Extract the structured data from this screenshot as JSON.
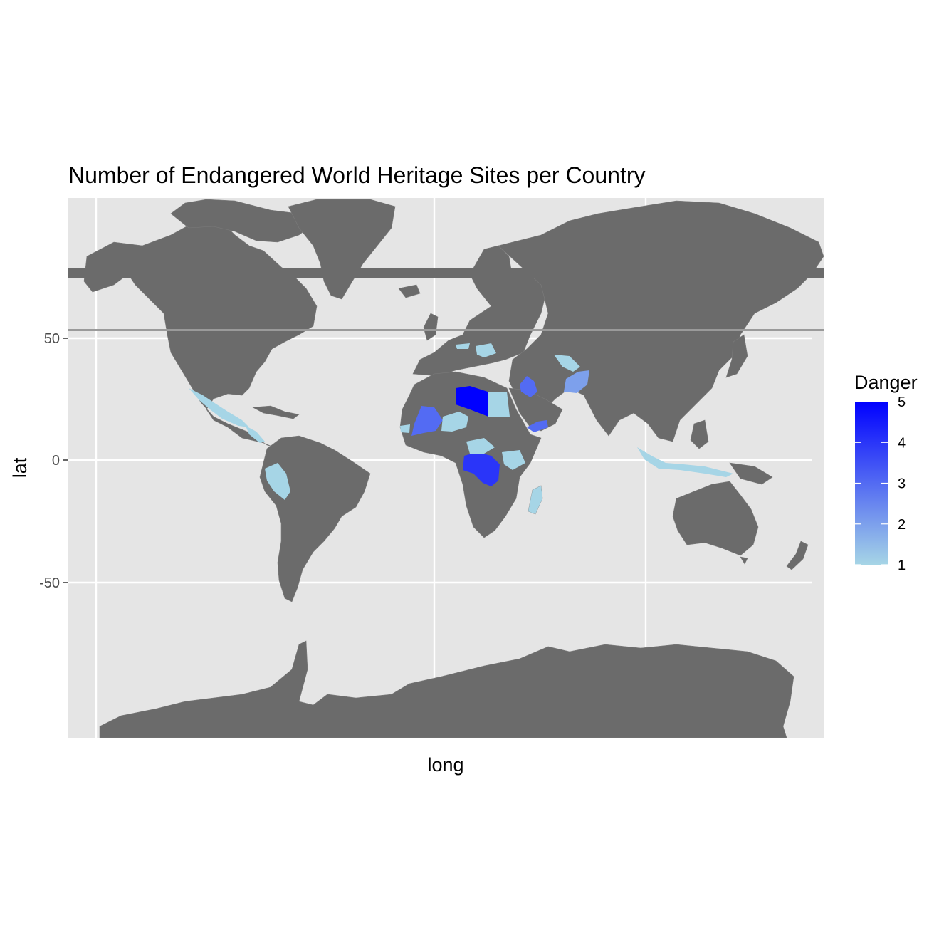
{
  "chart_data": {
    "type": "choropleth",
    "title": "Number of Endangered World Heritage Sites per Country",
    "xlabel": "long",
    "ylabel": "lat",
    "y_ticks": [
      50,
      0,
      -50
    ],
    "y_tick_labels": [
      "50",
      "0",
      "-50"
    ],
    "land_color": "#6b6b6b",
    "panel_color": "#e5e5e5",
    "legend": {
      "title": "Danger",
      "placement": "right",
      "low_color": "#a6d5e6",
      "high_color": "#0000ff",
      "min": 1,
      "max": 5,
      "ticks": [
        5,
        4,
        3,
        2,
        1
      ],
      "tick_labels": [
        "5",
        "4",
        "3",
        "2",
        "1"
      ]
    },
    "regions": [
      {
        "id": "mexico",
        "danger": 1
      },
      {
        "id": "central-america",
        "danger": 1
      },
      {
        "id": "peru",
        "danger": 1
      },
      {
        "id": "libya",
        "danger": 5
      },
      {
        "id": "egypt",
        "danger": 1
      },
      {
        "id": "mali",
        "danger": 3
      },
      {
        "id": "niger",
        "danger": 1
      },
      {
        "id": "senegal",
        "danger": 1
      },
      {
        "id": "dr-congo",
        "danger": 4
      },
      {
        "id": "central-african-republic",
        "danger": 1
      },
      {
        "id": "tanzania",
        "danger": 1
      },
      {
        "id": "madagascar",
        "danger": 1
      },
      {
        "id": "syria-iraq",
        "danger": 3
      },
      {
        "id": "yemen",
        "danger": 3
      },
      {
        "id": "afghanistan",
        "danger": 2
      },
      {
        "id": "uzbekistan",
        "danger": 1
      },
      {
        "id": "romania",
        "danger": 1
      },
      {
        "id": "austria",
        "danger": 1
      },
      {
        "id": "indonesia",
        "danger": 1
      }
    ]
  }
}
